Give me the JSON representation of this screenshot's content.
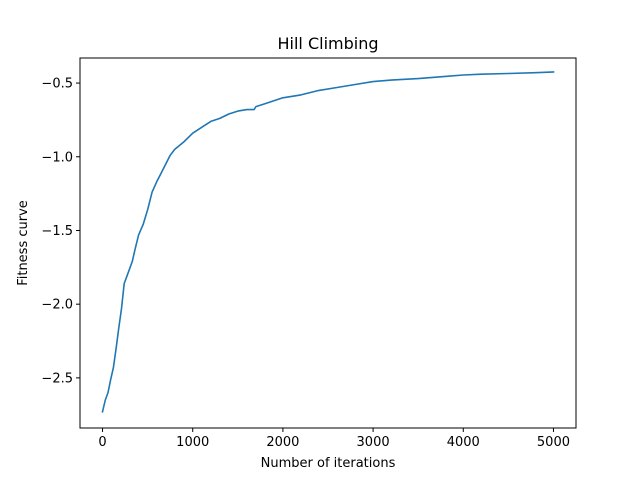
{
  "chart_data": {
    "type": "line",
    "title": "Hill Climbing",
    "xlabel": "Number of iterations",
    "ylabel": "Fitness curve",
    "xlim": [
      -250,
      5250
    ],
    "ylim": [
      -2.84,
      -0.33
    ],
    "xticks": [
      {
        "value": 0,
        "label": "0"
      },
      {
        "value": 1000,
        "label": "1000"
      },
      {
        "value": 2000,
        "label": "2000"
      },
      {
        "value": 3000,
        "label": "3000"
      },
      {
        "value": 4000,
        "label": "4000"
      },
      {
        "value": 5000,
        "label": "5000"
      }
    ],
    "yticks": [
      {
        "value": -2.5,
        "label": "−2.5"
      },
      {
        "value": -2.0,
        "label": "−2.0"
      },
      {
        "value": -1.5,
        "label": "−1.5"
      },
      {
        "value": -1.0,
        "label": "−1.0"
      },
      {
        "value": -0.5,
        "label": "−0.5"
      }
    ],
    "grid": false,
    "line_color": "#1f77b4",
    "series": [
      {
        "x": [
          0,
          30,
          60,
          90,
          120,
          150,
          180,
          210,
          240,
          270,
          300,
          330,
          360,
          400,
          450,
          500,
          550,
          600,
          650,
          700,
          750,
          800,
          900,
          1000,
          1100,
          1200,
          1300,
          1400,
          1500,
          1600,
          1680,
          1700,
          1800,
          1900,
          2000,
          2200,
          2400,
          2600,
          2800,
          3000,
          3200,
          3500,
          3800,
          4000,
          4200,
          4500,
          4800,
          5000
        ],
        "y": [
          -2.73,
          -2.65,
          -2.6,
          -2.51,
          -2.43,
          -2.3,
          -2.16,
          -2.03,
          -1.86,
          -1.81,
          -1.76,
          -1.71,
          -1.63,
          -1.53,
          -1.46,
          -1.36,
          -1.24,
          -1.17,
          -1.11,
          -1.05,
          -0.99,
          -0.95,
          -0.9,
          -0.84,
          -0.8,
          -0.76,
          -0.74,
          -0.71,
          -0.69,
          -0.68,
          -0.68,
          -0.66,
          -0.64,
          -0.62,
          -0.6,
          -0.58,
          -0.55,
          -0.53,
          -0.51,
          -0.49,
          -0.48,
          -0.47,
          -0.455,
          -0.445,
          -0.44,
          -0.435,
          -0.43,
          -0.425
        ]
      }
    ]
  }
}
